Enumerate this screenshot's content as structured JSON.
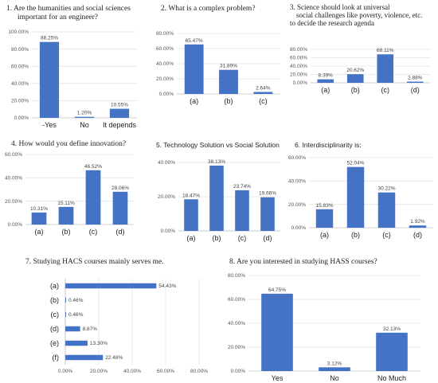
{
  "chart_data": [
    {
      "type": "bar",
      "title_lines": [
        "1.  Are the humanities and social sciences",
        "important for an engineer?"
      ],
      "categories": [
        "-Yes",
        "No",
        "It depends"
      ],
      "values": [
        88.25,
        1.2,
        10.55
      ],
      "value_labels": [
        "88.25%",
        "1.20%",
        "10.55%"
      ],
      "yticks": [
        "0.00%",
        "20.00%",
        "40.00%",
        "60.00%",
        "80.00%",
        "100.00%"
      ],
      "ylim": [
        0,
        100
      ],
      "grid": true,
      "color": "#4472c4"
    },
    {
      "type": "bar",
      "title_lines": [
        "2.    What is a complex problem?"
      ],
      "categories": [
        "(a)",
        "(b)",
        "(c)"
      ],
      "values": [
        65.47,
        31.89,
        2.64
      ],
      "value_labels": [
        "65.47%",
        "31.89%",
        "2.64%"
      ],
      "yticks": [
        "0.00%",
        "20.00%",
        "40.00%",
        "60.00%",
        "80.00%"
      ],
      "ylim": [
        0,
        80
      ],
      "grid": true,
      "color": "#4472c4"
    },
    {
      "type": "bar",
      "title_lines": [
        "3. Science should look at universal",
        "social challenges like  poverty, violence, etc.",
        "to decide the research agenda"
      ],
      "categories": [
        "(a)",
        "(b)",
        "(c)",
        "(d)"
      ],
      "values": [
        8.39,
        20.62,
        68.11,
        2.88
      ],
      "value_labels": [
        "8.39%",
        "20.62%",
        "68.11%",
        "2.88%"
      ],
      "yticks": [
        "0.00%",
        "20.00%",
        "40.00%",
        "60.00%",
        "80.00%"
      ],
      "ylim": [
        0,
        80
      ],
      "grid": true,
      "color": "#4472c4"
    },
    {
      "type": "bar",
      "title_lines": [
        "4. How would you define innovation?"
      ],
      "categories": [
        "(a)",
        "(b)",
        "(c)",
        "(d)"
      ],
      "values": [
        10.31,
        15.11,
        46.52,
        28.06
      ],
      "value_labels": [
        "10.31%",
        "15.11%",
        "46.52%",
        "28.06%"
      ],
      "yticks": [
        "0.00%",
        "20.00%",
        "40.00%",
        "60.00%"
      ],
      "ylim": [
        0,
        60
      ],
      "grid": true,
      "color": "#4472c4"
    },
    {
      "type": "bar",
      "title_lines": [
        "5.    Technology Solution vs Social Solution"
      ],
      "categories": [
        "(a)",
        "(b)",
        "(c)",
        "(d)"
      ],
      "values": [
        18.47,
        38.13,
        23.74,
        19.66
      ],
      "value_labels": [
        "18.47%",
        "38.13%",
        "23.74%",
        "19.66%"
      ],
      "yticks": [
        "0.00%",
        "20.00%",
        "40.00%"
      ],
      "ylim": [
        0,
        40
      ],
      "grid": true,
      "color": "#4472c4"
    },
    {
      "type": "bar",
      "title_lines": [
        "6.    Interdisciplinarity is:"
      ],
      "categories": [
        "(a)",
        "(b)",
        "(c)",
        "(d)"
      ],
      "values": [
        15.83,
        52.04,
        30.22,
        1.92
      ],
      "value_labels": [
        "15.83%",
        "52.04%",
        "30.22%",
        "1.92%"
      ],
      "yticks": [
        "0.00%",
        "20.00%",
        "40.00%",
        "60.00%"
      ],
      "ylim": [
        0,
        60
      ],
      "grid": true,
      "color": "#4472c4"
    },
    {
      "type": "bar",
      "orientation": "horizontal",
      "title_lines": [
        "7.    Studying HACS courses mainly serves me."
      ],
      "categories": [
        "(a)",
        "(b)",
        "(c)",
        "(d)",
        "(e)",
        "(f)"
      ],
      "values": [
        54.43,
        0.46,
        0.46,
        8.87,
        13.3,
        22.48
      ],
      "value_labels": [
        "54.43%",
        "0.46%",
        "0.46%",
        "8.87%",
        "13.30%",
        "22.48%"
      ],
      "xticks": [
        "0.00%",
        "20.00%",
        "40.00%",
        "60.00%",
        "80.00%"
      ],
      "xlim": [
        0,
        80
      ],
      "grid": true,
      "color": "#4472c4"
    },
    {
      "type": "bar",
      "title_lines": [
        "8. Are you interested in studying HASS courses?"
      ],
      "categories": [
        "Yes",
        "No",
        "No Much"
      ],
      "values": [
        64.75,
        3.12,
        32.13
      ],
      "value_labels": [
        "64.75%",
        "3.12%",
        "32.13%"
      ],
      "yticks": [
        "0.00%",
        "20.00%",
        "40.00%",
        "60.00%",
        "80.00%"
      ],
      "ylim": [
        0,
        80
      ],
      "grid": true,
      "color": "#4472c4"
    }
  ]
}
